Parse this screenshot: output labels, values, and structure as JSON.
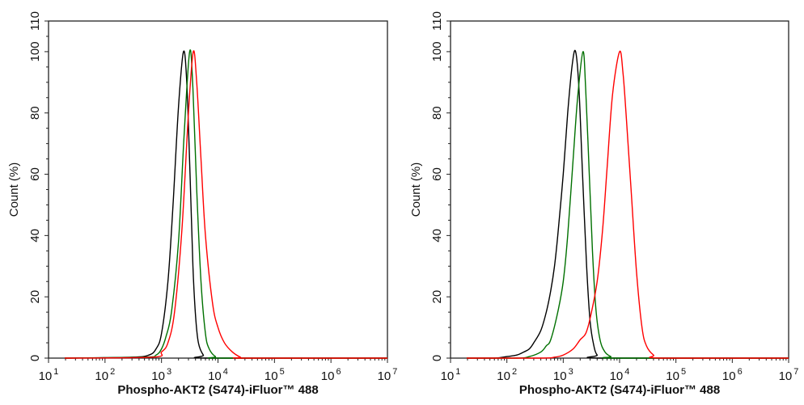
{
  "chart_data": [
    {
      "type": "line",
      "xlabel": "Phospho-AKT2 (S474)-iFluor™ 488",
      "ylabel": "Count  (%)",
      "xscale": "log",
      "xlim": [
        10,
        10000000
      ],
      "ylim": [
        0,
        110
      ],
      "xticks": [
        1,
        2,
        3,
        4,
        5,
        6,
        7
      ],
      "yticks": [
        0,
        20,
        40,
        60,
        80,
        100,
        110
      ],
      "grid": false,
      "series": [
        {
          "color": "#000000",
          "x": [
            300,
            600,
            800,
            1000,
            1300,
            1600,
            2000,
            2450,
            2800,
            3200,
            3600,
            4000,
            4500,
            5500,
            7000
          ],
          "y": [
            0.3,
            1,
            3,
            8,
            25,
            50,
            82,
            100,
            90,
            60,
            30,
            14,
            5,
            1,
            0
          ]
        },
        {
          "color": "#007000",
          "x": [
            500,
            800,
            1000,
            1200,
            1500,
            2000,
            2500,
            3150,
            3600,
            4200,
            5000,
            6000,
            7000,
            9000,
            12000
          ],
          "y": [
            0.3,
            1,
            3,
            7,
            15,
            38,
            72,
            100,
            88,
            55,
            25,
            8,
            3,
            0.5,
            0
          ]
        },
        {
          "color": "#ff0000",
          "x": [
            700,
            1000,
            1300,
            1700,
            2300,
            3000,
            3650,
            4200,
            5000,
            6000,
            8000,
            10000,
            13000,
            18000,
            25000,
            30000
          ],
          "y": [
            0.3,
            2,
            5,
            15,
            42,
            80,
            100,
            90,
            65,
            40,
            18,
            10,
            5,
            2,
            0.3,
            0
          ]
        }
      ]
    },
    {
      "type": "line",
      "xlabel": "Phospho-AKT2 (S474)-iFluor™ 488",
      "ylabel": "Count  (%)",
      "xscale": "log",
      "xlim": [
        10,
        10000000
      ],
      "ylim": [
        0,
        110
      ],
      "xticks": [
        1,
        2,
        3,
        4,
        5,
        6,
        7
      ],
      "yticks": [
        0,
        20,
        40,
        60,
        80,
        100,
        110
      ],
      "grid": false,
      "series": [
        {
          "color": "#000000",
          "x": [
            60,
            100,
            150,
            200,
            250,
            300,
            400,
            500,
            600,
            700,
            800,
            1000,
            1200,
            1450,
            1660,
            1900,
            2200,
            2600,
            3000,
            3500,
            4000,
            5000
          ],
          "y": [
            0,
            0.5,
            1,
            2,
            3,
            5,
            9,
            15,
            22,
            30,
            40,
            60,
            80,
            96,
            100,
            88,
            60,
            30,
            12,
            4,
            1,
            0
          ]
        },
        {
          "color": "#007000",
          "x": [
            150,
            250,
            400,
            500,
            600,
            800,
            1000,
            1200,
            1500,
            1800,
            2240,
            2500,
            2900,
            3300,
            3800,
            4500,
            5500,
            7000,
            9000
          ],
          "y": [
            0,
            0.5,
            2,
            4,
            6,
            15,
            25,
            40,
            65,
            85,
            100,
            88,
            60,
            35,
            16,
            6,
            2,
            0.5,
            0
          ]
        },
        {
          "color": "#ff0000",
          "x": [
            400,
            700,
            1000,
            1500,
            2000,
            2500,
            3000,
            4000,
            5000,
            6000,
            7500,
            10000,
            11500,
            13000,
            16000,
            20000,
            25000,
            30000,
            40000,
            55000
          ],
          "y": [
            0,
            0.3,
            1,
            3,
            6,
            8,
            13,
            25,
            42,
            62,
            86,
            100,
            93,
            80,
            55,
            28,
            10,
            4,
            1,
            0
          ]
        }
      ]
    }
  ]
}
